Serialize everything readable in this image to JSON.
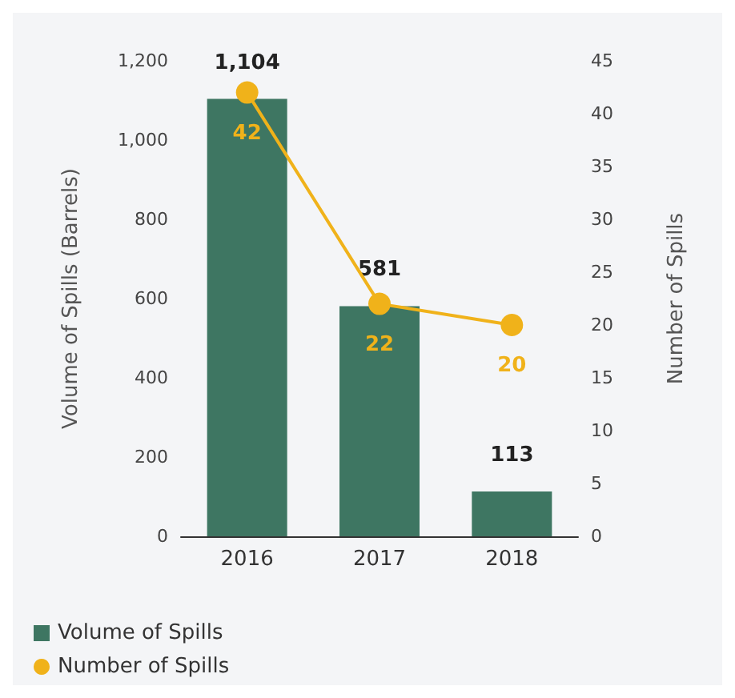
{
  "chart_data": {
    "type": "bar",
    "categories": [
      "2016",
      "2017",
      "2018"
    ],
    "series": [
      {
        "name": "Volume of Spills",
        "color": "#3e7662",
        "values": [
          1104,
          581,
          113
        ],
        "value_labels": [
          "1,104",
          "581",
          "113"
        ]
      },
      {
        "name": "Number of Spills",
        "type": "line",
        "axis": "y2",
        "color": "#f0b21a",
        "values": [
          42,
          22,
          20
        ],
        "value_labels": [
          "42",
          "22",
          "20"
        ],
        "marker": "circle"
      }
    ],
    "ylabel": "Volume of Spills (Barrels)",
    "y2label": "Number of Spills",
    "ylim": [
      0,
      1200
    ],
    "yticks": [
      0,
      200,
      400,
      600,
      800,
      {
        "value": 1000,
        "label": "1,000"
      },
      {
        "value": 1200,
        "label": "1,200"
      }
    ],
    "y2lim": [
      0,
      45
    ],
    "y2ticks": [
      0,
      5,
      10,
      15,
      20,
      25,
      30,
      35,
      40,
      45
    ],
    "grid": false,
    "legend": "bottom left"
  }
}
